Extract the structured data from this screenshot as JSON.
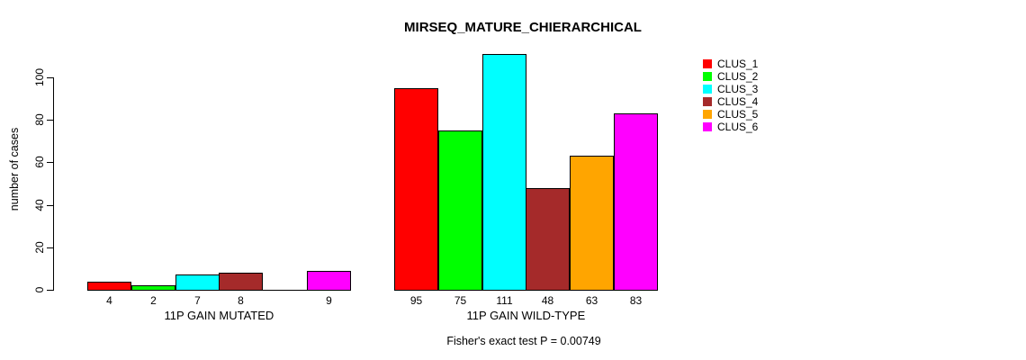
{
  "chart_data": {
    "type": "bar",
    "title": "MIRSEQ_MATURE_CHIERARCHICAL",
    "ylabel": "number of cases",
    "xlabel": "",
    "ylim": [
      0,
      111
    ],
    "yticks": [
      0,
      20,
      40,
      60,
      80,
      100
    ],
    "grid": false,
    "legend_position": "top-right",
    "bar_border_color": "#000000",
    "annotation": "Fisher's exact test P = 0.00749",
    "clusters": [
      {
        "name": "CLUS_1",
        "color": "#FF0000"
      },
      {
        "name": "CLUS_2",
        "color": "#00FF00"
      },
      {
        "name": "CLUS_3",
        "color": "#00FFFF"
      },
      {
        "name": "CLUS_4",
        "color": "#A52A2A"
      },
      {
        "name": "CLUS_5",
        "color": "#FFA500"
      },
      {
        "name": "CLUS_6",
        "color": "#FF00FF"
      }
    ],
    "categories": [
      "11P GAIN MUTATED",
      "11P GAIN WILD-TYPE"
    ],
    "groups": [
      {
        "label": "11P GAIN MUTATED",
        "values": [
          4,
          2,
          7,
          8,
          0,
          9
        ],
        "bar_labels": [
          "4",
          "2",
          "7",
          "8",
          "",
          "9"
        ]
      },
      {
        "label": "11P GAIN WILD-TYPE",
        "values": [
          95,
          75,
          111,
          48,
          63,
          83
        ],
        "bar_labels": [
          "95",
          "75",
          "111",
          "48",
          "63",
          "83"
        ]
      }
    ]
  }
}
